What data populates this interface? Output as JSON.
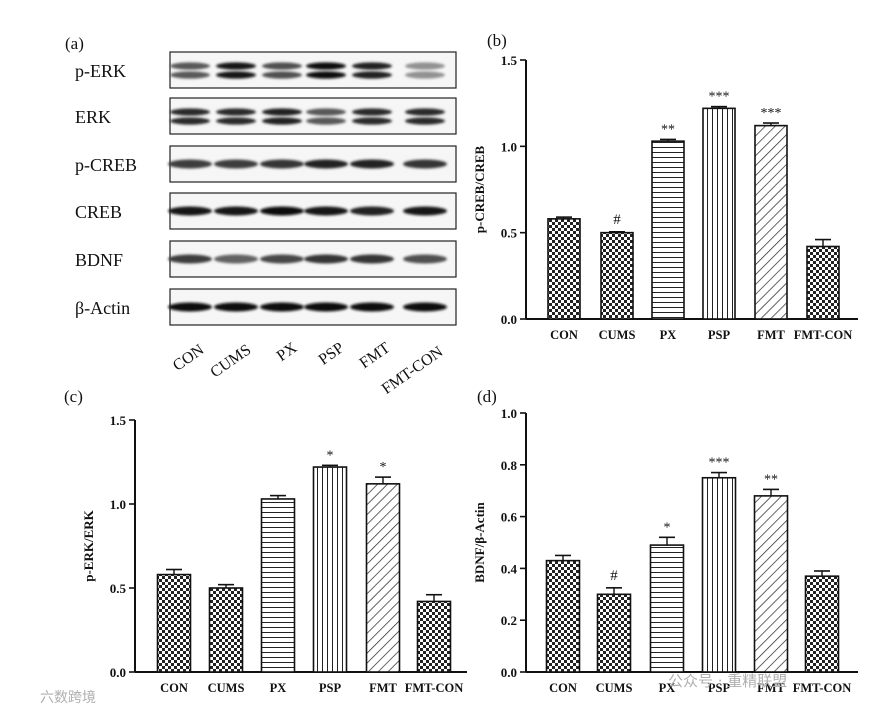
{
  "panels": {
    "a": {
      "label": "(a)",
      "blots": [
        "p-ERK",
        "ERK",
        "p-CREB",
        "CREB",
        "BDNF",
        "β-Actin"
      ],
      "lanes": [
        "CON",
        "CUMS",
        "PX",
        "PSP",
        "FMT",
        "FMT-CON"
      ],
      "band_intensity": {
        "p-ERK": [
          0.6,
          0.95,
          0.65,
          1.0,
          0.9,
          0.3
        ],
        "ERK": [
          0.85,
          0.85,
          0.9,
          0.6,
          0.85,
          0.85
        ],
        "p-CREB": [
          0.75,
          0.75,
          0.8,
          0.9,
          0.9,
          0.8
        ],
        "CREB": [
          0.95,
          0.95,
          1.0,
          0.95,
          0.9,
          0.95
        ],
        "BDNF": [
          0.75,
          0.55,
          0.7,
          0.8,
          0.8,
          0.65
        ],
        "β-Actin": [
          1.0,
          1.0,
          1.0,
          1.0,
          1.0,
          1.0
        ]
      }
    }
  },
  "chart_data": [
    {
      "id": "b",
      "panel_label": "(b)",
      "type": "bar",
      "categories": [
        "CON",
        "CUMS",
        "PX",
        "PSP",
        "FMT",
        "FMT-CON"
      ],
      "values": [
        0.58,
        0.5,
        1.03,
        1.22,
        1.12,
        0.42
      ],
      "errors": [
        0.01,
        0.005,
        0.01,
        0.01,
        0.015,
        0.04
      ],
      "annotations": [
        "",
        "#",
        "**",
        "***",
        "***",
        ""
      ],
      "patterns": [
        "check",
        "check",
        "hline",
        "vline",
        "diag",
        "check"
      ],
      "ylabel": "p-CREB/CREB",
      "xlabel": "",
      "title": "",
      "ylim": [
        0,
        1.5
      ],
      "yticks": [
        "0.0",
        "0.5",
        "1.0",
        "1.5"
      ]
    },
    {
      "id": "c",
      "panel_label": "(c)",
      "type": "bar",
      "categories": [
        "CON",
        "CUMS",
        "PX",
        "PSP",
        "FMT",
        "FMT-CON"
      ],
      "values": [
        0.58,
        0.5,
        1.03,
        1.22,
        1.12,
        0.42
      ],
      "errors": [
        0.03,
        0.02,
        0.02,
        0.01,
        0.04,
        0.04
      ],
      "annotations": [
        "",
        "",
        "",
        "*",
        "*",
        ""
      ],
      "patterns": [
        "check",
        "check",
        "hline",
        "vline",
        "diag",
        "check"
      ],
      "ylabel": "p-ERK/ERK",
      "xlabel": "",
      "title": "",
      "ylim": [
        0,
        1.5
      ],
      "yticks": [
        "0.0",
        "0.5",
        "1.0",
        "1.5"
      ]
    },
    {
      "id": "d",
      "panel_label": "(d)",
      "type": "bar",
      "categories": [
        "CON",
        "CUMS",
        "PX",
        "PSP",
        "FMT",
        "FMT-CON"
      ],
      "values": [
        0.43,
        0.3,
        0.49,
        0.75,
        0.68,
        0.37
      ],
      "errors": [
        0.02,
        0.025,
        0.03,
        0.02,
        0.025,
        0.02
      ],
      "annotations": [
        "",
        "#",
        "*",
        "***",
        "**",
        ""
      ],
      "patterns": [
        "check",
        "check",
        "hline",
        "vline",
        "diag",
        "check"
      ],
      "ylabel": "BDNF/β-Actin",
      "xlabel": "",
      "title": "",
      "ylim": [
        0,
        1.0
      ],
      "yticks": [
        "0.0",
        "0.2",
        "0.4",
        "0.6",
        "0.8",
        "1.0"
      ]
    }
  ],
  "watermarks": {
    "left": "六数跨境",
    "right": "公众号 · 重精联盟"
  }
}
